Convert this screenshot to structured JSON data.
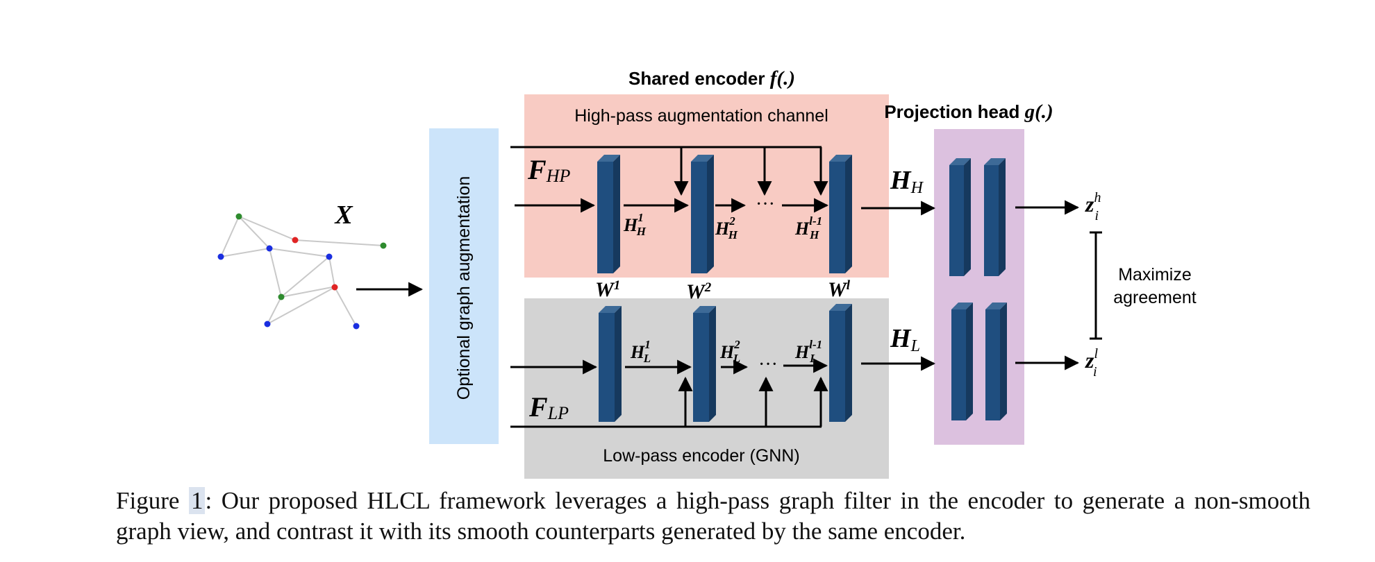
{
  "labels": {
    "input": "X",
    "shared_encoder": "Shared encoder",
    "shared_encoder_fn": "f(.)",
    "projection_head": "Projection head",
    "projection_head_fn": "g(.)",
    "augmentation": "Optional graph augmentation",
    "high_pass_channel": "High-pass augmentation channel",
    "low_pass_encoder": "Low-pass encoder (GNN)",
    "f_hp": "F",
    "f_hp_sub": "HP",
    "f_lp": "F",
    "f_lp_sub": "LP",
    "h_high": "H",
    "h_high_sub": "H",
    "h_low": "H",
    "h_low_sub": "L",
    "maximize": "Maximize",
    "agreement": "agreement",
    "dots": "···"
  },
  "weights": [
    {
      "base": "W",
      "sup": "1"
    },
    {
      "base": "W",
      "sup": "2"
    },
    {
      "base": "W",
      "sup": "l"
    }
  ],
  "high_hidden": [
    {
      "base": "H",
      "sub": "H",
      "sup": "1"
    },
    {
      "base": "H",
      "sub": "H",
      "sup": "2"
    },
    {
      "base": "H",
      "sub": "H",
      "sup": "l-1"
    }
  ],
  "low_hidden": [
    {
      "base": "H",
      "sub": "L",
      "sup": "1"
    },
    {
      "base": "H",
      "sub": "L",
      "sup": "2"
    },
    {
      "base": "H",
      "sub": "L",
      "sup": "l-1"
    }
  ],
  "outputs": {
    "z_high": {
      "base": "z",
      "sub": "i",
      "sup": "h"
    },
    "z_low": {
      "base": "z",
      "sub": "i",
      "sup": "l"
    }
  },
  "caption": {
    "prefix": "Figure ",
    "number": "1",
    "text": ": Our proposed HLCL framework leverages a high-pass graph filter in the encoder to generate a non-smooth graph view, and contrast it with its smooth counterparts generated by the same encoder."
  },
  "colors": {
    "high_pass_bg": "#f8cbc3",
    "low_pass_bg": "#d3d3d3",
    "augmentation_bg": "#cce4fa",
    "projection_bg": "#dcc1df",
    "layer_front": "#1f4e7f",
    "layer_side": "#16395e",
    "layer_top": "#3d6a97",
    "node_green": "#2e8b2e",
    "node_blue": "#1a2ee0",
    "node_red": "#e02424"
  }
}
